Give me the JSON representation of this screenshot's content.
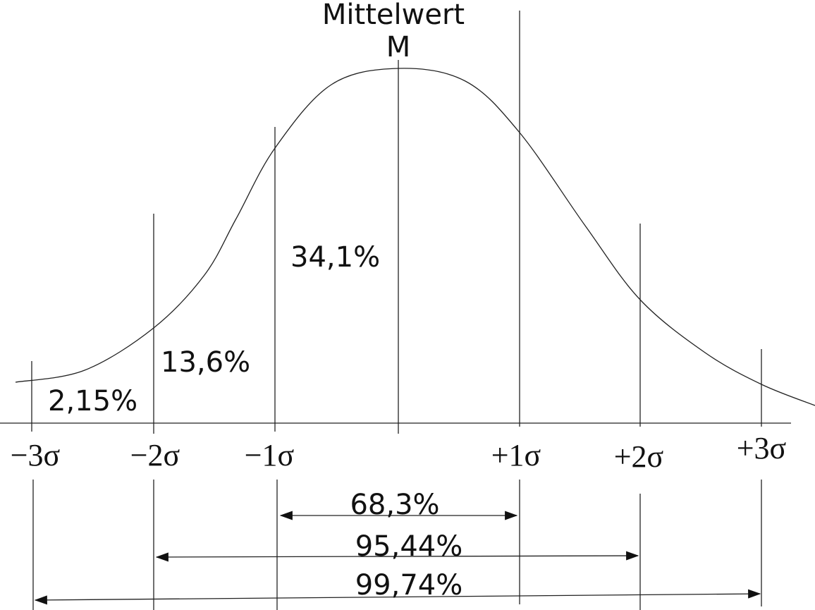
{
  "header": {
    "title": "Mittelwert",
    "symbol": "M"
  },
  "areas": [
    "2,15%",
    "13,6%",
    "34,1%"
  ],
  "sigma_labels": [
    "−3σ",
    "−2σ",
    "−1σ",
    "+1σ",
    "+2σ",
    "+3σ"
  ],
  "ranges": [
    "68,3%",
    "95,44%",
    "99,74%"
  ]
}
